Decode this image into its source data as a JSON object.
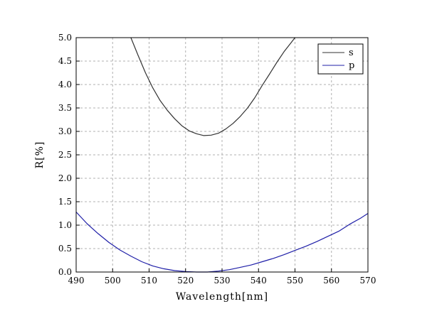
{
  "chart_data": {
    "type": "line",
    "title": "",
    "xlabel": "Wavelength[nm]",
    "ylabel": "R[%]",
    "xlim": [
      490,
      570
    ],
    "ylim": [
      0,
      5
    ],
    "xticks": [
      "490",
      "500",
      "510",
      "520",
      "530",
      "540",
      "550",
      "560",
      "570"
    ],
    "yticks": [
      "0.0",
      "0.5",
      "1.0",
      "1.5",
      "2.0",
      "2.5",
      "3.0",
      "3.5",
      "4.0",
      "4.5",
      "5.0"
    ],
    "grid": true,
    "legend_position": "top-right",
    "series": [
      {
        "name": "s",
        "color": "#333333",
        "x": [
          505,
          507,
          509,
          511,
          513,
          515,
          517,
          519,
          521,
          523,
          525,
          527,
          529,
          531,
          533,
          535,
          537,
          539,
          541,
          543,
          545,
          547,
          549,
          550
        ],
        "y": [
          5.0,
          4.62,
          4.25,
          3.93,
          3.66,
          3.45,
          3.27,
          3.12,
          3.01,
          2.95,
          2.91,
          2.92,
          2.96,
          3.05,
          3.17,
          3.32,
          3.5,
          3.72,
          3.98,
          4.22,
          4.47,
          4.7,
          4.9,
          5.0
        ]
      },
      {
        "name": "p",
        "color": "#1f1fa8",
        "x": [
          490,
          493,
          496,
          499,
          502,
          505,
          508,
          511,
          514,
          517,
          520,
          523,
          526,
          529,
          532,
          535,
          538,
          541,
          544,
          547,
          550,
          553,
          556,
          559,
          562,
          565,
          568,
          570
        ],
        "y": [
          1.28,
          1.03,
          0.82,
          0.63,
          0.47,
          0.34,
          0.22,
          0.13,
          0.07,
          0.03,
          0.01,
          0.0,
          0.0,
          0.02,
          0.05,
          0.1,
          0.15,
          0.22,
          0.29,
          0.37,
          0.46,
          0.55,
          0.65,
          0.76,
          0.87,
          1.02,
          1.15,
          1.25
        ]
      }
    ]
  }
}
